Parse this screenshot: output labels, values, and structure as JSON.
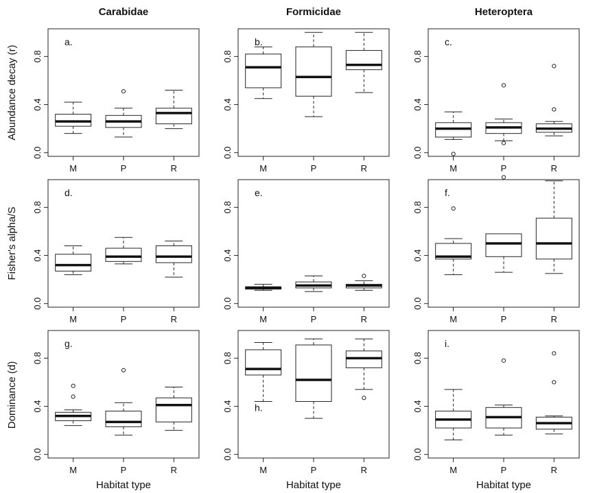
{
  "column_headers": [
    "Carabidae",
    "Formicidae",
    "Heteroptera"
  ],
  "row_labels": [
    "Abundance decay (r)",
    "Fisher's alpha/S",
    "Dominance (d)"
  ],
  "x_axis_label": "Habitat type",
  "chart_data": [
    {
      "type": "boxplot",
      "panel": "a.",
      "categories": [
        "M",
        "P",
        "R"
      ],
      "ylim": [
        -0.03,
        1.03
      ],
      "yticks": [
        0.0,
        0.4,
        0.8
      ],
      "boxes": [
        {
          "min": 0.16,
          "q1": 0.22,
          "median": 0.26,
          "q3": 0.32,
          "max": 0.42,
          "outliers": []
        },
        {
          "min": 0.13,
          "q1": 0.21,
          "median": 0.26,
          "q3": 0.31,
          "max": 0.37,
          "outliers": [
            0.51
          ]
        },
        {
          "min": 0.2,
          "q1": 0.24,
          "median": 0.33,
          "q3": 0.37,
          "max": 0.52,
          "outliers": []
        }
      ]
    },
    {
      "type": "boxplot",
      "panel": "b.",
      "categories": [
        "M",
        "P",
        "R"
      ],
      "ylim": [
        -0.03,
        1.03
      ],
      "yticks": [
        0.0,
        0.4,
        0.8
      ],
      "boxes": [
        {
          "min": 0.45,
          "q1": 0.54,
          "median": 0.71,
          "q3": 0.82,
          "max": 0.88,
          "outliers": []
        },
        {
          "min": 0.3,
          "q1": 0.47,
          "median": 0.63,
          "q3": 0.88,
          "max": 1.0,
          "outliers": []
        },
        {
          "min": 0.5,
          "q1": 0.69,
          "median": 0.73,
          "q3": 0.85,
          "max": 1.0,
          "outliers": []
        }
      ]
    },
    {
      "type": "boxplot",
      "panel": "c.",
      "categories": [
        "M",
        "P",
        "R"
      ],
      "ylim": [
        -0.03,
        1.03
      ],
      "yticks": [
        0.0,
        0.4,
        0.8
      ],
      "boxes": [
        {
          "min": 0.11,
          "q1": 0.13,
          "median": 0.2,
          "q3": 0.25,
          "max": 0.34,
          "outliers": [
            -0.01
          ]
        },
        {
          "min": 0.1,
          "q1": 0.16,
          "median": 0.21,
          "q3": 0.25,
          "max": 0.28,
          "outliers": [
            0.56,
            0.08
          ]
        },
        {
          "min": 0.14,
          "q1": 0.17,
          "median": 0.2,
          "q3": 0.24,
          "max": 0.26,
          "outliers": [
            0.72,
            0.36
          ]
        }
      ]
    },
    {
      "type": "boxplot",
      "panel": "d.",
      "categories": [
        "M",
        "P",
        "R"
      ],
      "ylim": [
        -0.03,
        1.03
      ],
      "yticks": [
        0.0,
        0.4,
        0.8
      ],
      "boxes": [
        {
          "min": 0.24,
          "q1": 0.27,
          "median": 0.32,
          "q3": 0.41,
          "max": 0.48,
          "outliers": []
        },
        {
          "min": 0.33,
          "q1": 0.35,
          "median": 0.39,
          "q3": 0.46,
          "max": 0.55,
          "outliers": []
        },
        {
          "min": 0.22,
          "q1": 0.34,
          "median": 0.39,
          "q3": 0.48,
          "max": 0.52,
          "outliers": []
        }
      ]
    },
    {
      "type": "boxplot",
      "panel": "e.",
      "categories": [
        "M",
        "P",
        "R"
      ],
      "ylim": [
        -0.03,
        1.03
      ],
      "yticks": [
        0.0,
        0.4,
        0.8
      ],
      "boxes": [
        {
          "min": 0.11,
          "q1": 0.12,
          "median": 0.13,
          "q3": 0.14,
          "max": 0.16,
          "outliers": []
        },
        {
          "min": 0.1,
          "q1": 0.13,
          "median": 0.15,
          "q3": 0.18,
          "max": 0.23,
          "outliers": []
        },
        {
          "min": 0.11,
          "q1": 0.13,
          "median": 0.15,
          "q3": 0.16,
          "max": 0.19,
          "outliers": [
            0.23
          ]
        }
      ]
    },
    {
      "type": "boxplot",
      "panel": "f.",
      "categories": [
        "M",
        "P",
        "R"
      ],
      "ylim": [
        -0.03,
        1.03
      ],
      "yticks": [
        0.0,
        0.4,
        0.8
      ],
      "boxes": [
        {
          "min": 0.24,
          "q1": 0.37,
          "median": 0.39,
          "q3": 0.5,
          "max": 0.54,
          "outliers": [
            0.79
          ]
        },
        {
          "min": 0.26,
          "q1": 0.39,
          "median": 0.5,
          "q3": 0.58,
          "max": 0.58,
          "outliers": [
            1.05
          ]
        },
        {
          "min": 0.25,
          "q1": 0.37,
          "median": 0.5,
          "q3": 0.71,
          "max": 1.02,
          "outliers": []
        }
      ]
    },
    {
      "type": "boxplot",
      "panel": "g.",
      "categories": [
        "M",
        "P",
        "R"
      ],
      "ylim": [
        -0.03,
        1.03
      ],
      "yticks": [
        0.0,
        0.4,
        0.8
      ],
      "boxes": [
        {
          "min": 0.24,
          "q1": 0.28,
          "median": 0.32,
          "q3": 0.35,
          "max": 0.37,
          "outliers": [
            0.57,
            0.48
          ]
        },
        {
          "min": 0.16,
          "q1": 0.23,
          "median": 0.27,
          "q3": 0.36,
          "max": 0.43,
          "outliers": [
            0.7
          ]
        },
        {
          "min": 0.2,
          "q1": 0.27,
          "median": 0.41,
          "q3": 0.47,
          "max": 0.56,
          "outliers": []
        }
      ]
    },
    {
      "type": "boxplot",
      "panel": "h.",
      "categories": [
        "M",
        "P",
        "R"
      ],
      "ylim": [
        -0.03,
        1.03
      ],
      "yticks": [
        0.0,
        0.4,
        0.8
      ],
      "boxes": [
        {
          "min": 0.44,
          "q1": 0.66,
          "median": 0.71,
          "q3": 0.87,
          "max": 0.93,
          "outliers": []
        },
        {
          "min": 0.3,
          "q1": 0.44,
          "median": 0.62,
          "q3": 0.91,
          "max": 0.96,
          "outliers": []
        },
        {
          "min": 0.54,
          "q1": 0.72,
          "median": 0.8,
          "q3": 0.86,
          "max": 0.96,
          "outliers": [
            0.47
          ]
        }
      ]
    },
    {
      "type": "boxplot",
      "panel": "i.",
      "categories": [
        "M",
        "P",
        "R"
      ],
      "ylim": [
        -0.03,
        1.03
      ],
      "yticks": [
        0.0,
        0.4,
        0.8
      ],
      "boxes": [
        {
          "min": 0.12,
          "q1": 0.22,
          "median": 0.29,
          "q3": 0.36,
          "max": 0.54,
          "outliers": []
        },
        {
          "min": 0.16,
          "q1": 0.22,
          "median": 0.31,
          "q3": 0.39,
          "max": 0.41,
          "outliers": [
            0.78
          ]
        },
        {
          "min": 0.17,
          "q1": 0.21,
          "median": 0.26,
          "q3": 0.31,
          "max": 0.32,
          "outliers": [
            0.84,
            0.6
          ]
        }
      ]
    }
  ]
}
